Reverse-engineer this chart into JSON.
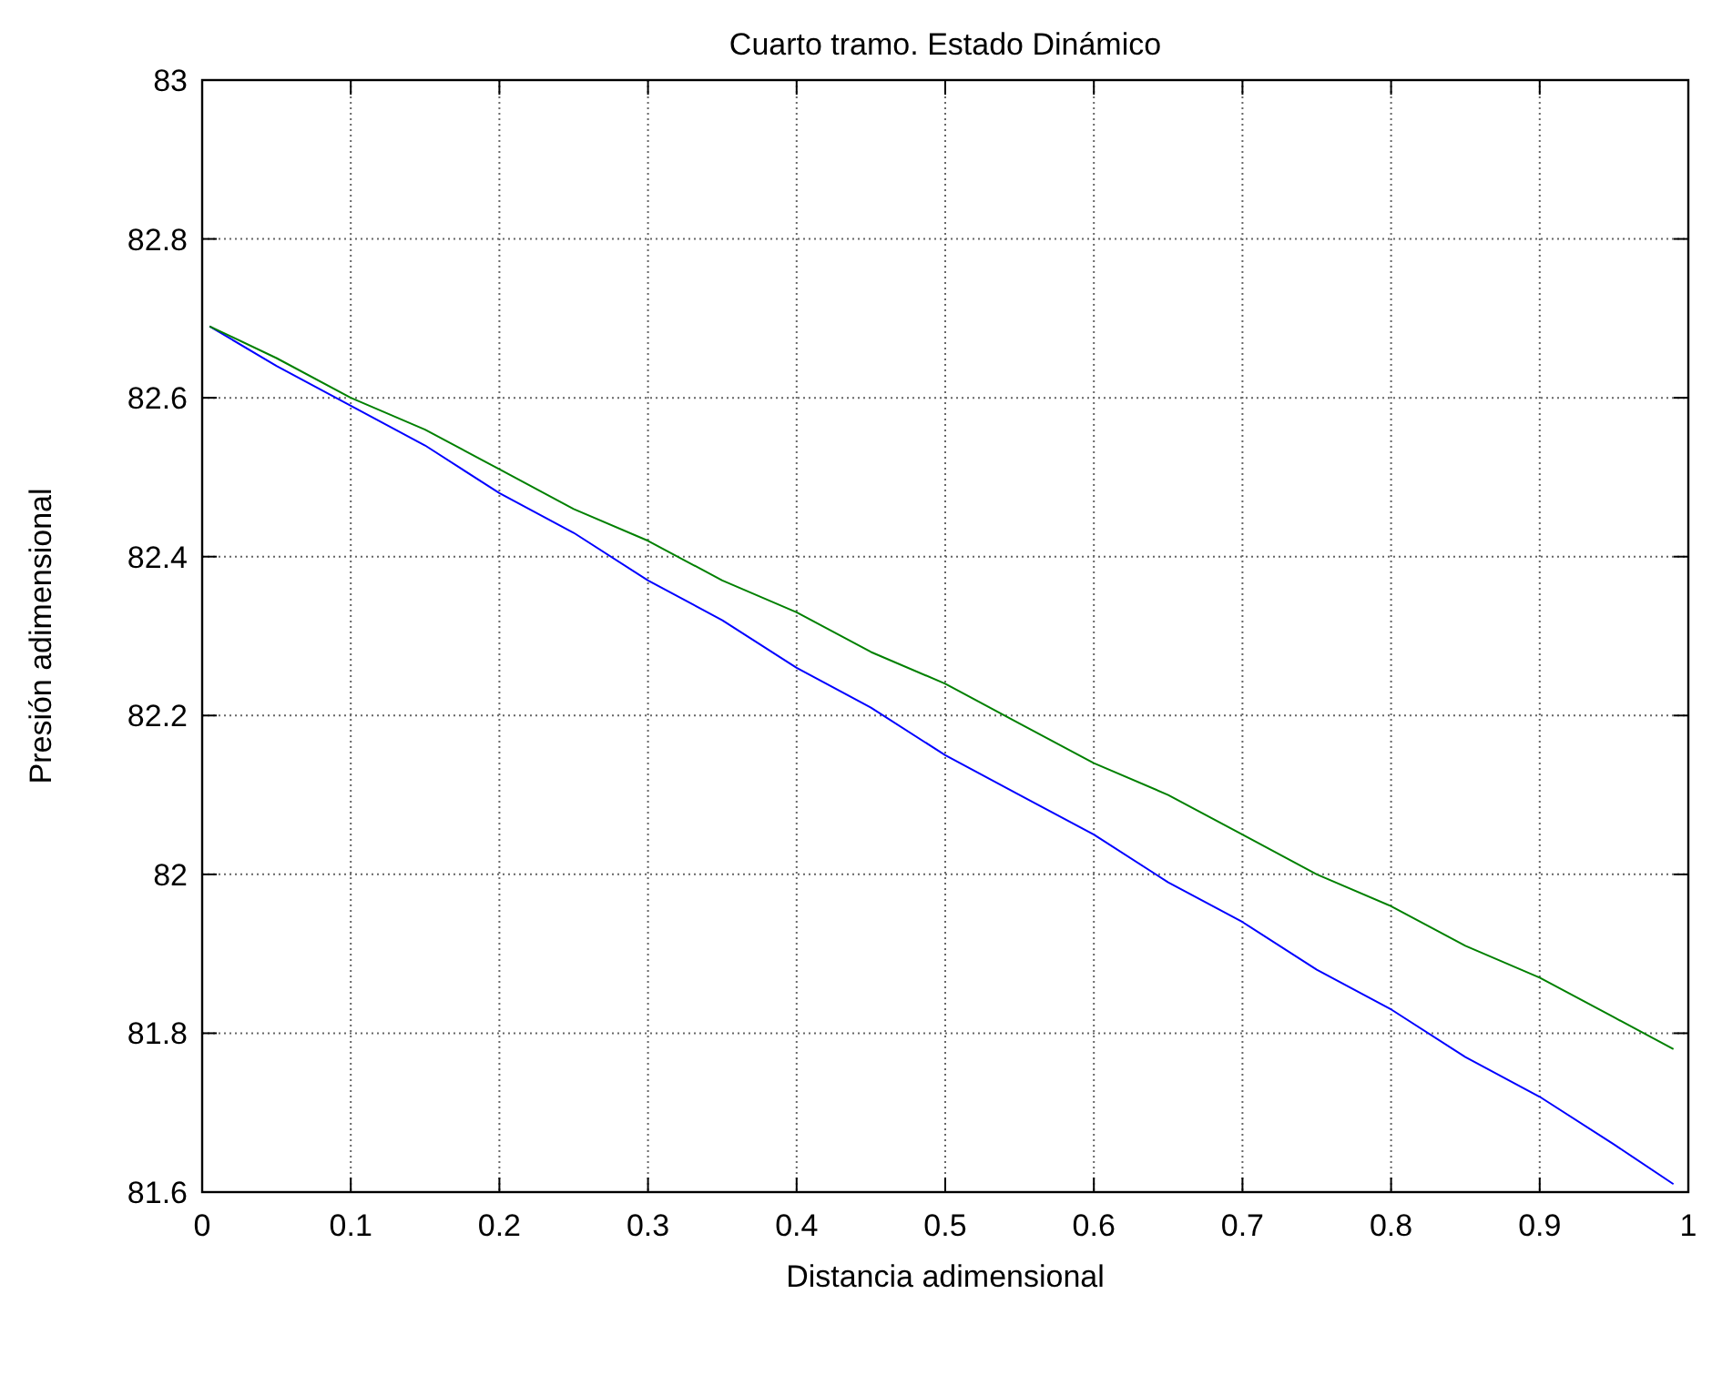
{
  "chart_data": {
    "type": "line",
    "title": "Cuarto tramo. Estado Dinámico",
    "xlabel": "Distancia adimensional",
    "ylabel": "Presión adimensional",
    "x": [
      0.005,
      0.05,
      0.1,
      0.15,
      0.2,
      0.25,
      0.3,
      0.35,
      0.4,
      0.45,
      0.5,
      0.55,
      0.6,
      0.65,
      0.7,
      0.75,
      0.8,
      0.85,
      0.9,
      0.95,
      0.99
    ],
    "series": [
      {
        "color": "#0000ff",
        "values": [
          82.69,
          82.64,
          82.59,
          82.54,
          82.48,
          82.43,
          82.37,
          82.32,
          82.26,
          82.21,
          82.15,
          82.1,
          82.05,
          81.99,
          81.94,
          81.88,
          81.83,
          81.77,
          81.72,
          81.66,
          81.61
        ]
      },
      {
        "color": "#008000",
        "values": [
          82.69,
          82.65,
          82.6,
          82.56,
          82.51,
          82.46,
          82.42,
          82.37,
          82.33,
          82.28,
          82.24,
          82.19,
          82.14,
          82.1,
          82.05,
          82,
          81.96,
          81.91,
          81.87,
          81.82,
          81.78
        ]
      }
    ],
    "xlim": [
      0,
      1
    ],
    "xticks": [
      0,
      0.1,
      0.2,
      0.3,
      0.4,
      0.5,
      0.6,
      0.7,
      0.8,
      0.9,
      1
    ],
    "ylim": [
      81.6,
      83
    ],
    "yticks": [
      81.6,
      81.8,
      82,
      82.2,
      82.4,
      82.6,
      82.8,
      83
    ],
    "grid": true,
    "line_style": "solid",
    "marker": "none"
  }
}
